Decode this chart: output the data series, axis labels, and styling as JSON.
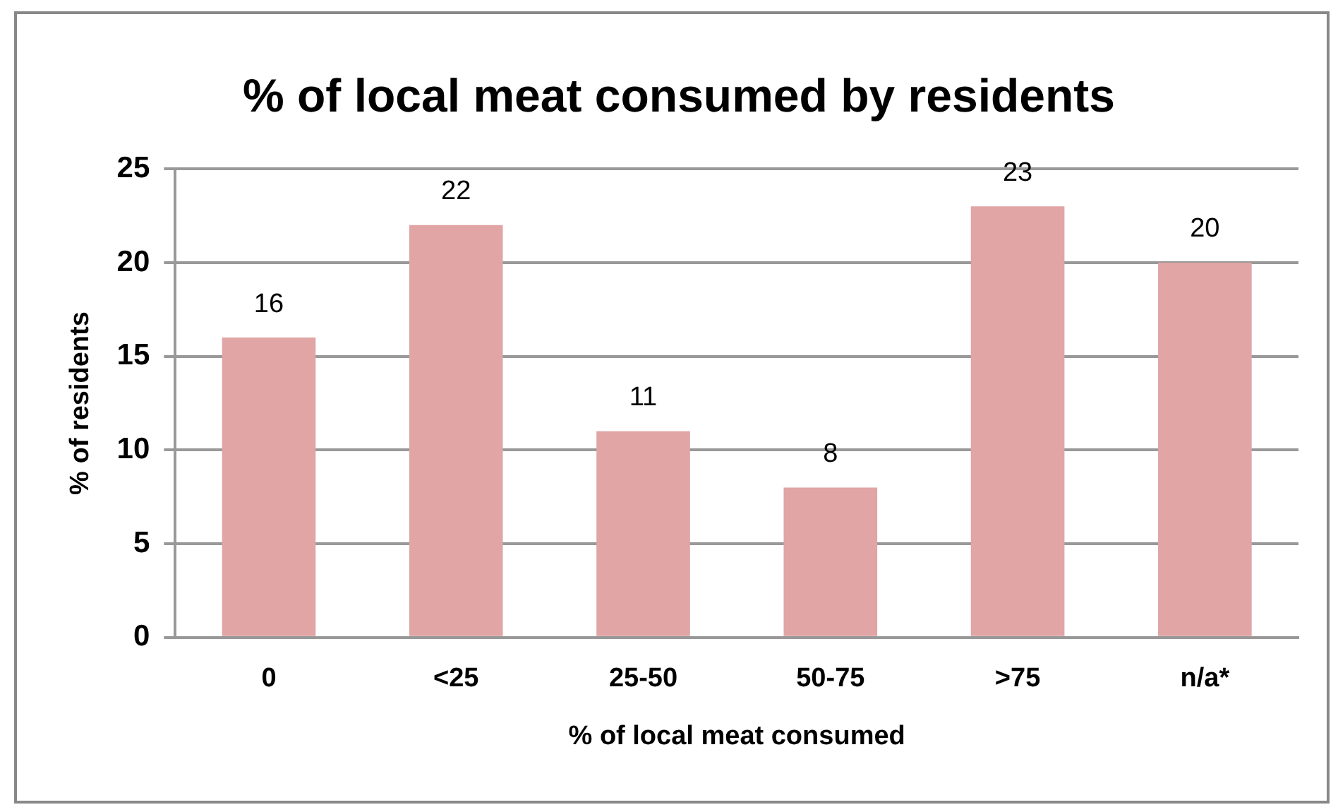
{
  "chart_data": {
    "type": "bar",
    "title": "% of local meat consumed by residents",
    "xlabel": "% of local meat consumed",
    "ylabel": "% of residents",
    "categories": [
      "0",
      "<25",
      "25-50",
      "50-75",
      ">75",
      "n/a*"
    ],
    "values": [
      16,
      22,
      11,
      8,
      23,
      20
    ],
    "color": "#e0a5a4",
    "ylim": [
      0,
      25
    ],
    "yticks": [
      0,
      5,
      10,
      15,
      20,
      25
    ],
    "grid": "y",
    "data_labels": true,
    "legend": false
  }
}
